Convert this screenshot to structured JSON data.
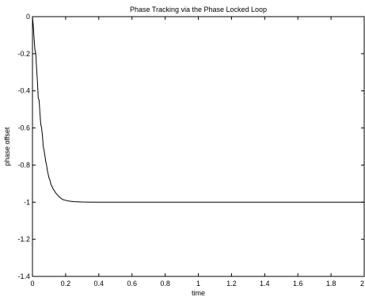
{
  "chart_data": {
    "type": "line",
    "title": "Phase Tracking via the Phase Locked Loop",
    "xlabel": "time",
    "ylabel": "phase offset",
    "xlim": [
      0,
      2
    ],
    "ylim": [
      -1.4,
      0
    ],
    "grid": false,
    "x_ticks": [
      "0",
      "0.2",
      "0.4",
      "0.6",
      "0.8",
      "1",
      "1.2",
      "1.4",
      "1.6",
      "1.8",
      "2"
    ],
    "y_ticks": [
      "0",
      "-0.2",
      "-0.4",
      "-0.6",
      "-0.8",
      "-1",
      "-1.2",
      "-1.4"
    ],
    "series": [
      {
        "color": "#000000",
        "x": [
          0,
          0.005,
          0.01,
          0.015,
          0.02,
          0.025,
          0.03,
          0.035,
          0.04,
          0.045,
          0.05,
          0.055,
          0.06,
          0.065,
          0.07,
          0.075,
          0.08,
          0.085,
          0.09,
          0.095,
          0.1,
          0.105,
          0.11,
          0.115,
          0.12,
          0.125,
          0.13,
          0.14,
          0.15,
          0.16,
          0.17,
          0.18,
          0.19,
          0.2,
          0.22,
          0.25,
          0.28,
          0.3,
          0.35,
          0.4,
          0.5,
          0.6,
          0.8,
          1.0,
          1.2,
          1.4,
          1.6,
          1.8,
          2.0
        ],
        "y": [
          0,
          -0.05,
          -0.12,
          -0.18,
          -0.2,
          -0.28,
          -0.35,
          -0.44,
          -0.45,
          -0.52,
          -0.58,
          -0.6,
          -0.64,
          -0.7,
          -0.72,
          -0.75,
          -0.78,
          -0.8,
          -0.83,
          -0.85,
          -0.87,
          -0.88,
          -0.9,
          -0.91,
          -0.92,
          -0.93,
          -0.935,
          -0.95,
          -0.96,
          -0.97,
          -0.978,
          -0.984,
          -0.988,
          -0.99,
          -0.994,
          -0.997,
          -0.998,
          -0.999,
          -1.0,
          -1.0,
          -1.0,
          -1.0,
          -1.0,
          -1.0,
          -1.0,
          -1.0,
          -1.0,
          -1.0,
          -1.0
        ]
      }
    ]
  }
}
